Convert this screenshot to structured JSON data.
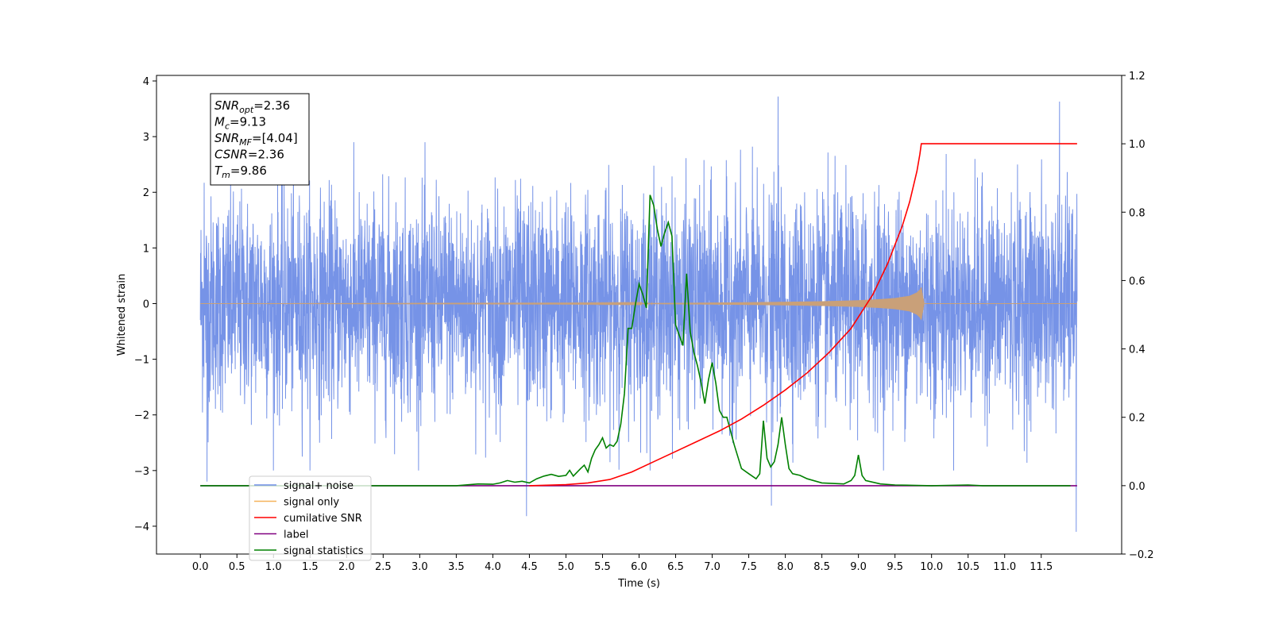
{
  "chart_data": {
    "type": "line",
    "xlabel": "Time (s)",
    "ylabel": "Whitened strain",
    "xlim": [
      -0.6,
      12.6
    ],
    "ylim": [
      -4.5,
      4.1
    ],
    "ylim_right": [
      -0.2,
      1.2
    ],
    "x_ticks": [
      "0.0",
      "0.5",
      "1.0",
      "1.5",
      "2.0",
      "2.5",
      "3.0",
      "3.5",
      "4.0",
      "4.5",
      "5.0",
      "5.5",
      "6.0",
      "6.5",
      "7.0",
      "7.5",
      "8.0",
      "8.5",
      "9.0",
      "9.5",
      "10.0",
      "10.5",
      "11.0",
      "11.5"
    ],
    "y_ticks": [
      "4",
      "3",
      "2",
      "1",
      "0",
      "−1",
      "−2",
      "−3",
      "−4"
    ],
    "y_ticks_right": [
      "1.2",
      "1.0",
      "0.8",
      "0.6",
      "0.4",
      "0.2",
      "0.0",
      "−0.2"
    ],
    "legend_position": "lower-left",
    "grid": false,
    "annotation": [
      {
        "sym": "SNR",
        "sub": "opt",
        "val": "=2.36"
      },
      {
        "sym": "M",
        "sub": "c",
        "val": "=9.13"
      },
      {
        "sym": "SNR",
        "sub": "MF",
        "val": "=[4.04]"
      },
      {
        "sym": "CSNR",
        "sub": "",
        "val": "=2.36"
      },
      {
        "sym": "T",
        "sub": "m",
        "val": "=9.86"
      }
    ],
    "series": [
      {
        "name": "signal+ noise",
        "axis": "left",
        "color": "#6f8de6",
        "x_range": [
          0.0,
          11.99
        ],
        "approx_amplitude_range": [
          -3.0,
          3.0
        ],
        "notable_peaks": [
          [
            0.05,
            2.17
          ],
          [
            0.09,
            -3.2
          ],
          [
            7.9,
            3.72
          ],
          [
            7.81,
            -3.63
          ],
          [
            4.46,
            -3.82
          ],
          [
            11.75,
            3.63
          ],
          [
            11.98,
            -4.1
          ]
        ]
      },
      {
        "name": "signal only",
        "axis": "left",
        "color": "#f5b25a",
        "x": [
          0.0,
          5.0,
          6.0,
          6.5,
          7.0,
          7.5,
          8.0,
          8.5,
          9.0,
          9.3,
          9.5,
          9.7,
          9.8,
          9.84,
          9.86,
          9.9,
          11.99
        ],
        "envelope": [
          0.0,
          0.005,
          0.008,
          0.012,
          0.018,
          0.024,
          0.032,
          0.042,
          0.06,
          0.08,
          0.1,
          0.14,
          0.2,
          0.25,
          0.3,
          0.0,
          0.0
        ]
      },
      {
        "name": "cumilative SNR",
        "axis": "right",
        "color": "#ff0000",
        "x": [
          4.5,
          5.0,
          5.3,
          5.6,
          5.9,
          6.2,
          6.5,
          6.8,
          7.1,
          7.4,
          7.7,
          8.0,
          8.3,
          8.6,
          8.9,
          9.2,
          9.4,
          9.6,
          9.7,
          9.8,
          9.84,
          9.86,
          11.99
        ],
        "values": [
          0.0,
          0.003,
          0.008,
          0.018,
          0.04,
          0.07,
          0.1,
          0.13,
          0.16,
          0.195,
          0.235,
          0.28,
          0.33,
          0.39,
          0.46,
          0.56,
          0.65,
          0.76,
          0.83,
          0.92,
          0.97,
          1.0,
          1.0
        ]
      },
      {
        "name": "label",
        "axis": "right",
        "color": "#800080",
        "x": [
          0.0,
          11.99
        ],
        "values": [
          0.0,
          0.0
        ]
      },
      {
        "name": "signal statistics",
        "axis": "right",
        "color": "#008000",
        "x": [
          0.0,
          3.5,
          3.8,
          4.0,
          4.1,
          4.2,
          4.3,
          4.4,
          4.5,
          4.6,
          4.7,
          4.8,
          4.9,
          5.0,
          5.05,
          5.1,
          5.2,
          5.25,
          5.3,
          5.35,
          5.4,
          5.45,
          5.5,
          5.55,
          5.6,
          5.65,
          5.7,
          5.75,
          5.8,
          5.85,
          5.9,
          5.95,
          6.0,
          6.05,
          6.1,
          6.15,
          6.2,
          6.25,
          6.3,
          6.35,
          6.4,
          6.45,
          6.5,
          6.55,
          6.6,
          6.65,
          6.7,
          6.75,
          6.8,
          6.85,
          6.9,
          6.95,
          7.0,
          7.05,
          7.1,
          7.15,
          7.2,
          7.3,
          7.4,
          7.5,
          7.6,
          7.65,
          7.7,
          7.75,
          7.8,
          7.85,
          7.9,
          7.95,
          8.0,
          8.05,
          8.1,
          8.2,
          8.3,
          8.5,
          8.8,
          8.9,
          8.95,
          9.0,
          9.05,
          9.1,
          9.3,
          9.5,
          10.0,
          10.5,
          10.7,
          11.0,
          11.9
        ],
        "values": [
          0.0,
          0.0,
          0.005,
          0.004,
          0.008,
          0.015,
          0.01,
          0.013,
          0.008,
          0.02,
          0.028,
          0.033,
          0.027,
          0.03,
          0.045,
          0.028,
          0.05,
          0.06,
          0.04,
          0.08,
          0.105,
          0.12,
          0.14,
          0.11,
          0.12,
          0.115,
          0.13,
          0.18,
          0.27,
          0.46,
          0.46,
          0.53,
          0.59,
          0.56,
          0.52,
          0.85,
          0.82,
          0.75,
          0.7,
          0.74,
          0.77,
          0.73,
          0.47,
          0.44,
          0.41,
          0.62,
          0.45,
          0.39,
          0.35,
          0.3,
          0.24,
          0.31,
          0.36,
          0.3,
          0.22,
          0.2,
          0.2,
          0.12,
          0.05,
          0.035,
          0.02,
          0.035,
          0.19,
          0.08,
          0.055,
          0.07,
          0.12,
          0.2,
          0.12,
          0.05,
          0.035,
          0.03,
          0.02,
          0.008,
          0.005,
          0.015,
          0.03,
          0.09,
          0.03,
          0.015,
          0.005,
          0.002,
          0.0,
          0.002,
          0.0,
          0.0,
          0.0
        ]
      }
    ]
  }
}
